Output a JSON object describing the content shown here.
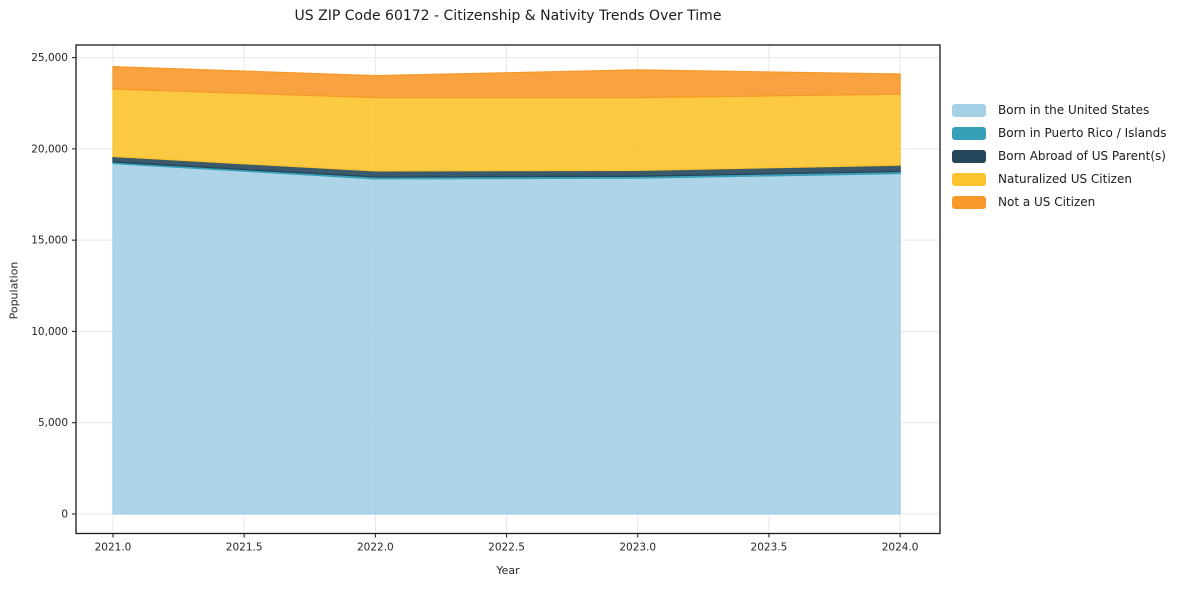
{
  "page": {
    "background": "#ffffff"
  },
  "chart_data": {
    "type": "area",
    "stacked": true,
    "title": "US ZIP Code 60172 - Citizenship & Nativity Trends Over Time",
    "xlabel": "Year",
    "ylabel": "Population",
    "x": [
      2021,
      2022,
      2023,
      2024
    ],
    "series": [
      {
        "name": "Born in the United States",
        "color": "#a4cfe4",
        "values": [
          19200,
          18360,
          18400,
          18650
        ]
      },
      {
        "name": "Born in Puerto Rico / Islands",
        "color": "#36a0b7",
        "values": [
          80,
          100,
          100,
          110
        ]
      },
      {
        "name": "Born Abroad of US Parent(s)",
        "color": "#25475b",
        "values": [
          300,
          335,
          320,
          350
        ]
      },
      {
        "name": "Naturalized US Citizen",
        "color": "#fcc32d",
        "values": [
          3700,
          4015,
          3990,
          3890
        ]
      },
      {
        "name": "Not a US Citizen",
        "color": "#f8992b",
        "values": [
          1220,
          1200,
          1515,
          1100
        ]
      }
    ],
    "totals": [
      24500,
      24010,
      24325,
      24100
    ],
    "xlim": [
      2020.859,
      2024.152
    ],
    "ylim": [
      -1070,
      25690
    ],
    "xticks": [
      2021.0,
      2021.5,
      2022.0,
      2022.5,
      2023.0,
      2023.5,
      2024.0
    ],
    "xtick_labels": [
      "2021.0",
      "2021.5",
      "2022.0",
      "2022.5",
      "2023.0",
      "2023.5",
      "2024.0"
    ],
    "yticks": [
      0,
      5000,
      10000,
      15000,
      20000,
      25000
    ],
    "ytick_labels": [
      "0",
      "5,000",
      "10,000",
      "15,000",
      "20,000",
      "25,000"
    ],
    "grid": true,
    "grid_color": "#e8e8e8",
    "spine_color": "#1a1a1a",
    "tick_color": "#2a2a2a",
    "tick_label_color": "#262626",
    "fill_opacity": 0.9,
    "legend_position": "right"
  }
}
